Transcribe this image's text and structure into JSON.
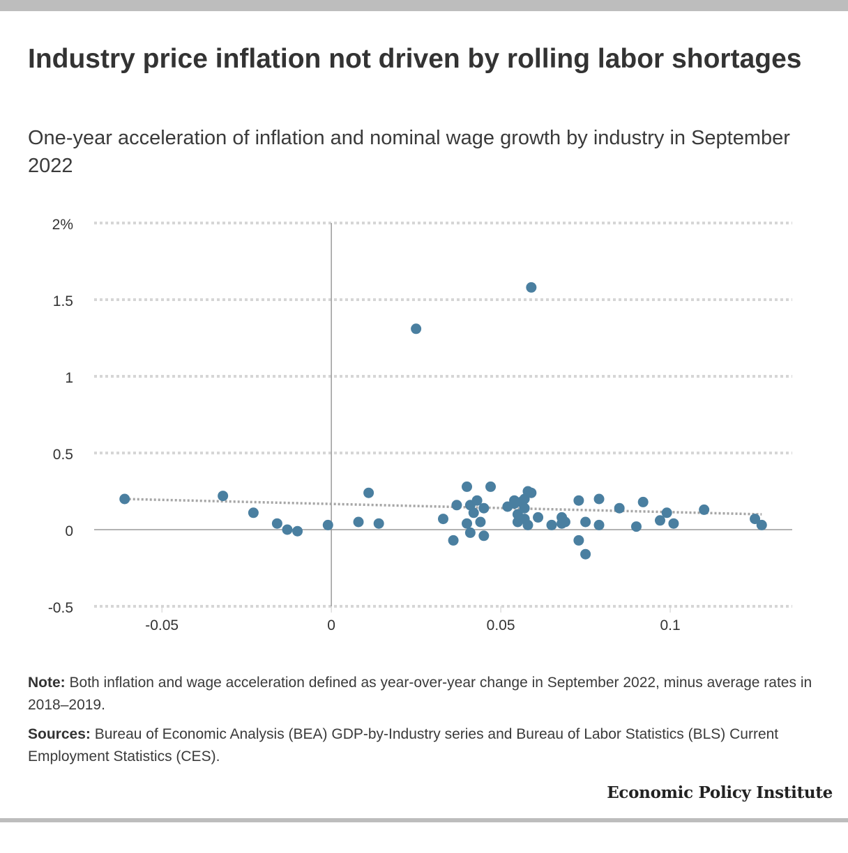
{
  "title": "Industry price inflation not driven by rolling labor shortages",
  "subtitle": "One-year acceleration of inflation and nominal wage growth by industry in September 2022",
  "note": {
    "label": "Note:",
    "text": "Both inflation and wage acceleration defined as year-over-year change in September 2022, minus average rates in 2018–2019."
  },
  "sources": {
    "label": "Sources:",
    "text": "Bureau of Economic Analysis (BEA) GDP-by-Industry series and Bureau of Labor Statistics (BLS) Current Employment Statistics (CES)."
  },
  "brand": "Economic Policy Institute",
  "colors": {
    "points": "#4a7fa0",
    "trend": "#a6a6a6",
    "grid": "#d6d6d6",
    "axis": "#9a9a9a"
  },
  "chart_data": {
    "type": "scatter",
    "title": "Industry price inflation not driven by rolling labor shortages",
    "xlabel": "",
    "ylabel": "",
    "xlim": [
      -0.07,
      0.136
    ],
    "ylim": [
      -0.5,
      2
    ],
    "x_ticks": [
      {
        "value": -0.05,
        "label": "-0.05"
      },
      {
        "value": 0,
        "label": "0"
      },
      {
        "value": 0.05,
        "label": "0.05"
      },
      {
        "value": 0.1,
        "label": "0.1"
      }
    ],
    "y_ticks": [
      {
        "value": 2,
        "label": "2%"
      },
      {
        "value": 1.5,
        "label": "1.5"
      },
      {
        "value": 1,
        "label": "1"
      },
      {
        "value": 0.5,
        "label": "0.5"
      },
      {
        "value": 0,
        "label": "0"
      },
      {
        "value": -0.5,
        "label": "-0.5"
      }
    ],
    "grid": "horizontal dotted",
    "trendline": {
      "x": [
        -0.061,
        0.127
      ],
      "y": [
        0.2,
        0.1
      ]
    },
    "points": [
      {
        "x": -0.061,
        "y": 0.2
      },
      {
        "x": -0.032,
        "y": 0.22
      },
      {
        "x": -0.023,
        "y": 0.11
      },
      {
        "x": -0.016,
        "y": 0.04
      },
      {
        "x": -0.013,
        "y": 0.0
      },
      {
        "x": -0.01,
        "y": -0.01
      },
      {
        "x": -0.001,
        "y": 0.03
      },
      {
        "x": 0.008,
        "y": 0.05
      },
      {
        "x": 0.011,
        "y": 0.24
      },
      {
        "x": 0.014,
        "y": 0.04
      },
      {
        "x": 0.025,
        "y": 1.31
      },
      {
        "x": 0.033,
        "y": 0.07
      },
      {
        "x": 0.036,
        "y": -0.07
      },
      {
        "x": 0.037,
        "y": 0.16
      },
      {
        "x": 0.04,
        "y": 0.28
      },
      {
        "x": 0.04,
        "y": 0.04
      },
      {
        "x": 0.041,
        "y": -0.02
      },
      {
        "x": 0.041,
        "y": 0.16
      },
      {
        "x": 0.042,
        "y": 0.11
      },
      {
        "x": 0.043,
        "y": 0.19
      },
      {
        "x": 0.044,
        "y": 0.05
      },
      {
        "x": 0.045,
        "y": 0.14
      },
      {
        "x": 0.045,
        "y": -0.04
      },
      {
        "x": 0.047,
        "y": 0.28
      },
      {
        "x": 0.052,
        "y": 0.15
      },
      {
        "x": 0.054,
        "y": 0.19
      },
      {
        "x": 0.054,
        "y": 0.17
      },
      {
        "x": 0.055,
        "y": 0.05
      },
      {
        "x": 0.055,
        "y": 0.1
      },
      {
        "x": 0.056,
        "y": 0.18
      },
      {
        "x": 0.057,
        "y": 0.14
      },
      {
        "x": 0.057,
        "y": 0.2
      },
      {
        "x": 0.057,
        "y": 0.07
      },
      {
        "x": 0.058,
        "y": 0.25
      },
      {
        "x": 0.058,
        "y": 0.03
      },
      {
        "x": 0.059,
        "y": 1.58
      },
      {
        "x": 0.059,
        "y": 0.24
      },
      {
        "x": 0.061,
        "y": 0.08
      },
      {
        "x": 0.065,
        "y": 0.03
      },
      {
        "x": 0.068,
        "y": 0.08
      },
      {
        "x": 0.068,
        "y": 0.04
      },
      {
        "x": 0.069,
        "y": 0.05
      },
      {
        "x": 0.073,
        "y": 0.19
      },
      {
        "x": 0.073,
        "y": -0.07
      },
      {
        "x": 0.075,
        "y": 0.05
      },
      {
        "x": 0.075,
        "y": -0.16
      },
      {
        "x": 0.079,
        "y": 0.2
      },
      {
        "x": 0.079,
        "y": 0.03
      },
      {
        "x": 0.085,
        "y": 0.14
      },
      {
        "x": 0.09,
        "y": 0.02
      },
      {
        "x": 0.092,
        "y": 0.18
      },
      {
        "x": 0.097,
        "y": 0.06
      },
      {
        "x": 0.099,
        "y": 0.11
      },
      {
        "x": 0.101,
        "y": 0.04
      },
      {
        "x": 0.11,
        "y": 0.13
      },
      {
        "x": 0.125,
        "y": 0.07
      },
      {
        "x": 0.127,
        "y": 0.03
      }
    ]
  }
}
